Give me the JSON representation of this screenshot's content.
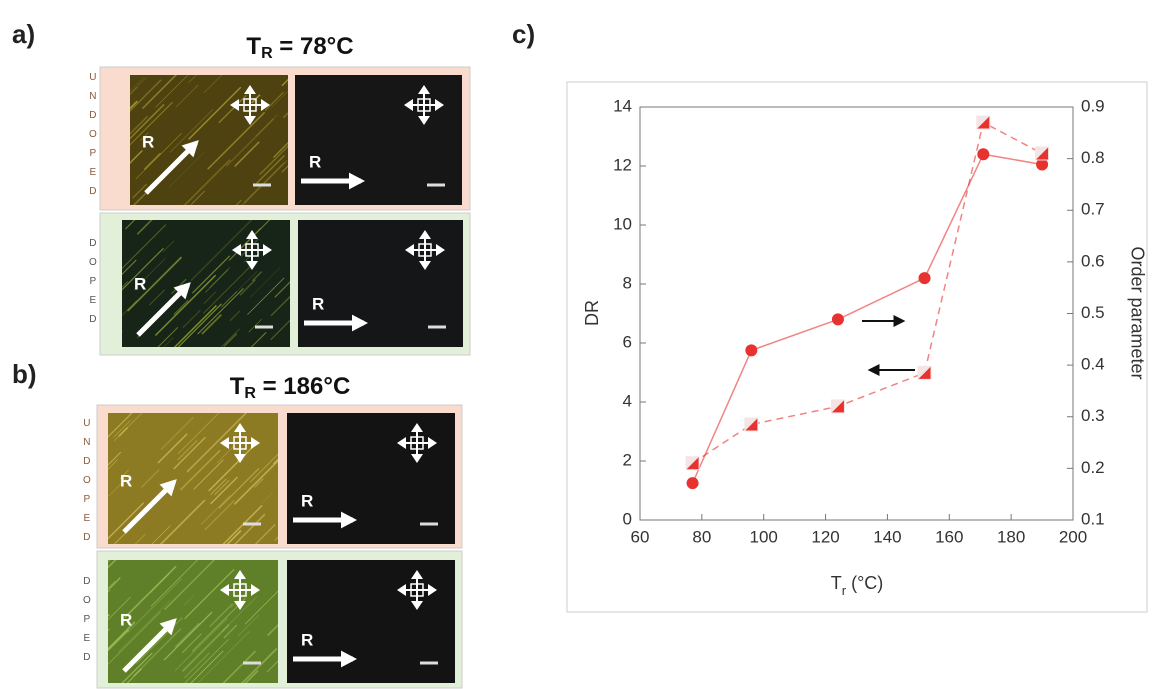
{
  "panel_a": {
    "label": "a)",
    "title": {
      "symbol": "T",
      "subscript": "R",
      "value": " = 78°C"
    },
    "rows": [
      {
        "side": "UNDOPED",
        "images": [
          {
            "arrow_label": "R"
          },
          {
            "arrow_label": "R"
          }
        ]
      },
      {
        "side": "DOPED",
        "images": [
          {
            "arrow_label": "R"
          },
          {
            "arrow_label": "R"
          }
        ]
      }
    ]
  },
  "panel_b": {
    "label": "b)",
    "title": {
      "symbol": "T",
      "subscript": "R",
      "value": " = 186°C"
    },
    "rows": [
      {
        "side": "UNDOPED",
        "images": [
          {
            "arrow_label": "R"
          },
          {
            "arrow_label": "R"
          }
        ]
      },
      {
        "side": "DOPED",
        "images": [
          {
            "arrow_label": "R"
          },
          {
            "arrow_label": "R"
          }
        ]
      }
    ]
  },
  "panel_c": {
    "label": "c)"
  },
  "chart_data": {
    "type": "line",
    "xlabel": "T",
    "xlabel_subscript": "r",
    "xlabel_suffix": " (°C)",
    "ylabel": "DR",
    "y2label": "Order parameter",
    "x": [
      77,
      96,
      124,
      152,
      171,
      190
    ],
    "series": [
      {
        "name": "DR",
        "color": "#e8322f",
        "marker": "circle",
        "dashed": false,
        "values": [
          1.25,
          5.75,
          6.8,
          8.2,
          12.4,
          12.05
        ]
      },
      {
        "name": "Order parameter",
        "color": "#e8322f",
        "marker": "triangle",
        "dashed": true,
        "axis": "y2",
        "values": [
          0.21,
          0.285,
          0.32,
          0.385,
          0.87,
          0.81
        ]
      }
    ],
    "xlim": [
      60,
      200
    ],
    "xticks": [
      60,
      80,
      100,
      120,
      140,
      160,
      180,
      200
    ],
    "ylim": [
      0,
      14
    ],
    "yticks": [
      0,
      2,
      4,
      6,
      8,
      10,
      12,
      14
    ],
    "y2lim": [
      0.1,
      0.9
    ],
    "y2ticks": [
      0.1,
      0.2,
      0.3,
      0.4,
      0.5,
      0.6,
      0.7,
      0.8,
      0.9
    ]
  }
}
